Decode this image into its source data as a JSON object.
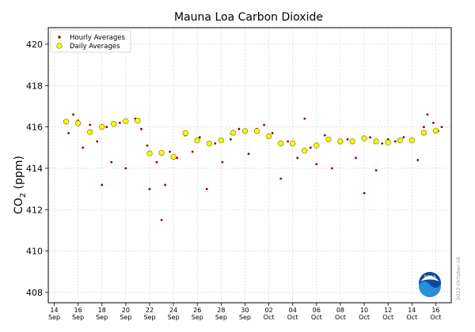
{
  "chart_data": {
    "type": "scatter",
    "title": "Mauna Loa Carbon Dioxide",
    "ylabel_main": "CO",
    "ylabel_sub": "2",
    "ylabel_units": " (ppm)",
    "ylim": [
      407.5,
      420.8
    ],
    "yticks": [
      408,
      410,
      412,
      414,
      416,
      418,
      420
    ],
    "xlim": [
      13.5,
      47.3
    ],
    "grid": true,
    "legend": "top-left",
    "series": [
      {
        "name": "Hourly Averages",
        "color": "#8b0000",
        "marker": "small-dot",
        "sample_points": [
          [
            15.2,
            415.7
          ],
          [
            15.6,
            416.6
          ],
          [
            16.0,
            416.3
          ],
          [
            16.4,
            415.0
          ],
          [
            17.0,
            416.1
          ],
          [
            17.6,
            415.3
          ],
          [
            18.0,
            413.2
          ],
          [
            18.4,
            416.0
          ],
          [
            18.8,
            414.3
          ],
          [
            19.5,
            416.2
          ],
          [
            20.0,
            414.0
          ],
          [
            20.8,
            416.4
          ],
          [
            21.3,
            415.9
          ],
          [
            21.8,
            415.1
          ],
          [
            22.0,
            413.0
          ],
          [
            22.6,
            414.3
          ],
          [
            23.0,
            411.5
          ],
          [
            23.3,
            413.2
          ],
          [
            23.7,
            414.8
          ],
          [
            24.3,
            414.5
          ],
          [
            25.0,
            415.6
          ],
          [
            25.6,
            414.8
          ],
          [
            26.2,
            415.5
          ],
          [
            26.8,
            413.0
          ],
          [
            27.5,
            415.2
          ],
          [
            28.1,
            414.3
          ],
          [
            28.8,
            415.4
          ],
          [
            29.5,
            415.9
          ],
          [
            30.3,
            414.7
          ],
          [
            31.0,
            415.9
          ],
          [
            31.6,
            416.1
          ],
          [
            32.3,
            415.7
          ],
          [
            33.0,
            413.5
          ],
          [
            33.6,
            415.3
          ],
          [
            34.4,
            414.5
          ],
          [
            35.0,
            416.4
          ],
          [
            35.5,
            415.0
          ],
          [
            36.0,
            414.2
          ],
          [
            36.7,
            415.6
          ],
          [
            37.3,
            414.0
          ],
          [
            38.0,
            415.3
          ],
          [
            38.6,
            415.4
          ],
          [
            39.3,
            414.5
          ],
          [
            40.0,
            412.8
          ],
          [
            40.5,
            415.5
          ],
          [
            41.0,
            413.9
          ],
          [
            41.5,
            415.2
          ],
          [
            42.0,
            415.4
          ],
          [
            42.6,
            415.3
          ],
          [
            43.3,
            415.5
          ],
          [
            44.0,
            415.3
          ],
          [
            44.5,
            414.4
          ],
          [
            45.0,
            416.0
          ],
          [
            45.3,
            416.6
          ],
          [
            45.8,
            416.2
          ],
          [
            46.2,
            415.8
          ],
          [
            46.5,
            416.0
          ]
        ]
      },
      {
        "name": "Daily Averages",
        "color": "#ffff00",
        "edge": "#666600",
        "marker": "circle",
        "points": [
          [
            15.0,
            416.26
          ],
          [
            16.0,
            416.18
          ],
          [
            17.0,
            415.75
          ],
          [
            18.0,
            416.0
          ],
          [
            19.0,
            416.15
          ],
          [
            20.0,
            416.28
          ],
          [
            21.0,
            416.3
          ],
          [
            22.0,
            414.72
          ],
          [
            23.0,
            414.75
          ],
          [
            24.0,
            414.55
          ],
          [
            25.0,
            415.7
          ],
          [
            26.0,
            415.35
          ],
          [
            27.0,
            415.2
          ],
          [
            28.0,
            415.35
          ],
          [
            29.0,
            415.72
          ],
          [
            30.0,
            415.8
          ],
          [
            31.0,
            415.8
          ],
          [
            32.0,
            415.55
          ],
          [
            33.0,
            415.2
          ],
          [
            34.0,
            415.2
          ],
          [
            35.0,
            414.85
          ],
          [
            36.0,
            415.1
          ],
          [
            37.0,
            415.4
          ],
          [
            38.0,
            415.3
          ],
          [
            39.0,
            415.3
          ],
          [
            40.0,
            415.45
          ],
          [
            41.0,
            415.3
          ],
          [
            42.0,
            415.25
          ],
          [
            43.0,
            415.35
          ],
          [
            44.0,
            415.35
          ],
          [
            45.0,
            415.72
          ],
          [
            46.0,
            415.82
          ]
        ]
      }
    ],
    "xticks": [
      {
        "x": 14,
        "day": "14",
        "month": "Sep"
      },
      {
        "x": 16,
        "day": "16",
        "month": "Sep"
      },
      {
        "x": 18,
        "day": "18",
        "month": "Sep"
      },
      {
        "x": 20,
        "day": "20",
        "month": "Sep"
      },
      {
        "x": 22,
        "day": "22",
        "month": "Sep"
      },
      {
        "x": 24,
        "day": "24",
        "month": "Sep"
      },
      {
        "x": 26,
        "day": "26",
        "month": "Sep"
      },
      {
        "x": 28,
        "day": "28",
        "month": "Sep"
      },
      {
        "x": 30,
        "day": "30",
        "month": "Sep"
      },
      {
        "x": 32,
        "day": "02",
        "month": "Oct"
      },
      {
        "x": 34,
        "day": "04",
        "month": "Oct"
      },
      {
        "x": 36,
        "day": "06",
        "month": "Oct"
      },
      {
        "x": 38,
        "day": "08",
        "month": "Oct"
      },
      {
        "x": 40,
        "day": "10",
        "month": "Oct"
      },
      {
        "x": 42,
        "day": "12",
        "month": "Oct"
      },
      {
        "x": 44,
        "day": "14",
        "month": "Oct"
      },
      {
        "x": 46,
        "day": "16",
        "month": "Oct"
      }
    ],
    "datestamp": "2022-October-16",
    "logo_text": "NOAA"
  }
}
